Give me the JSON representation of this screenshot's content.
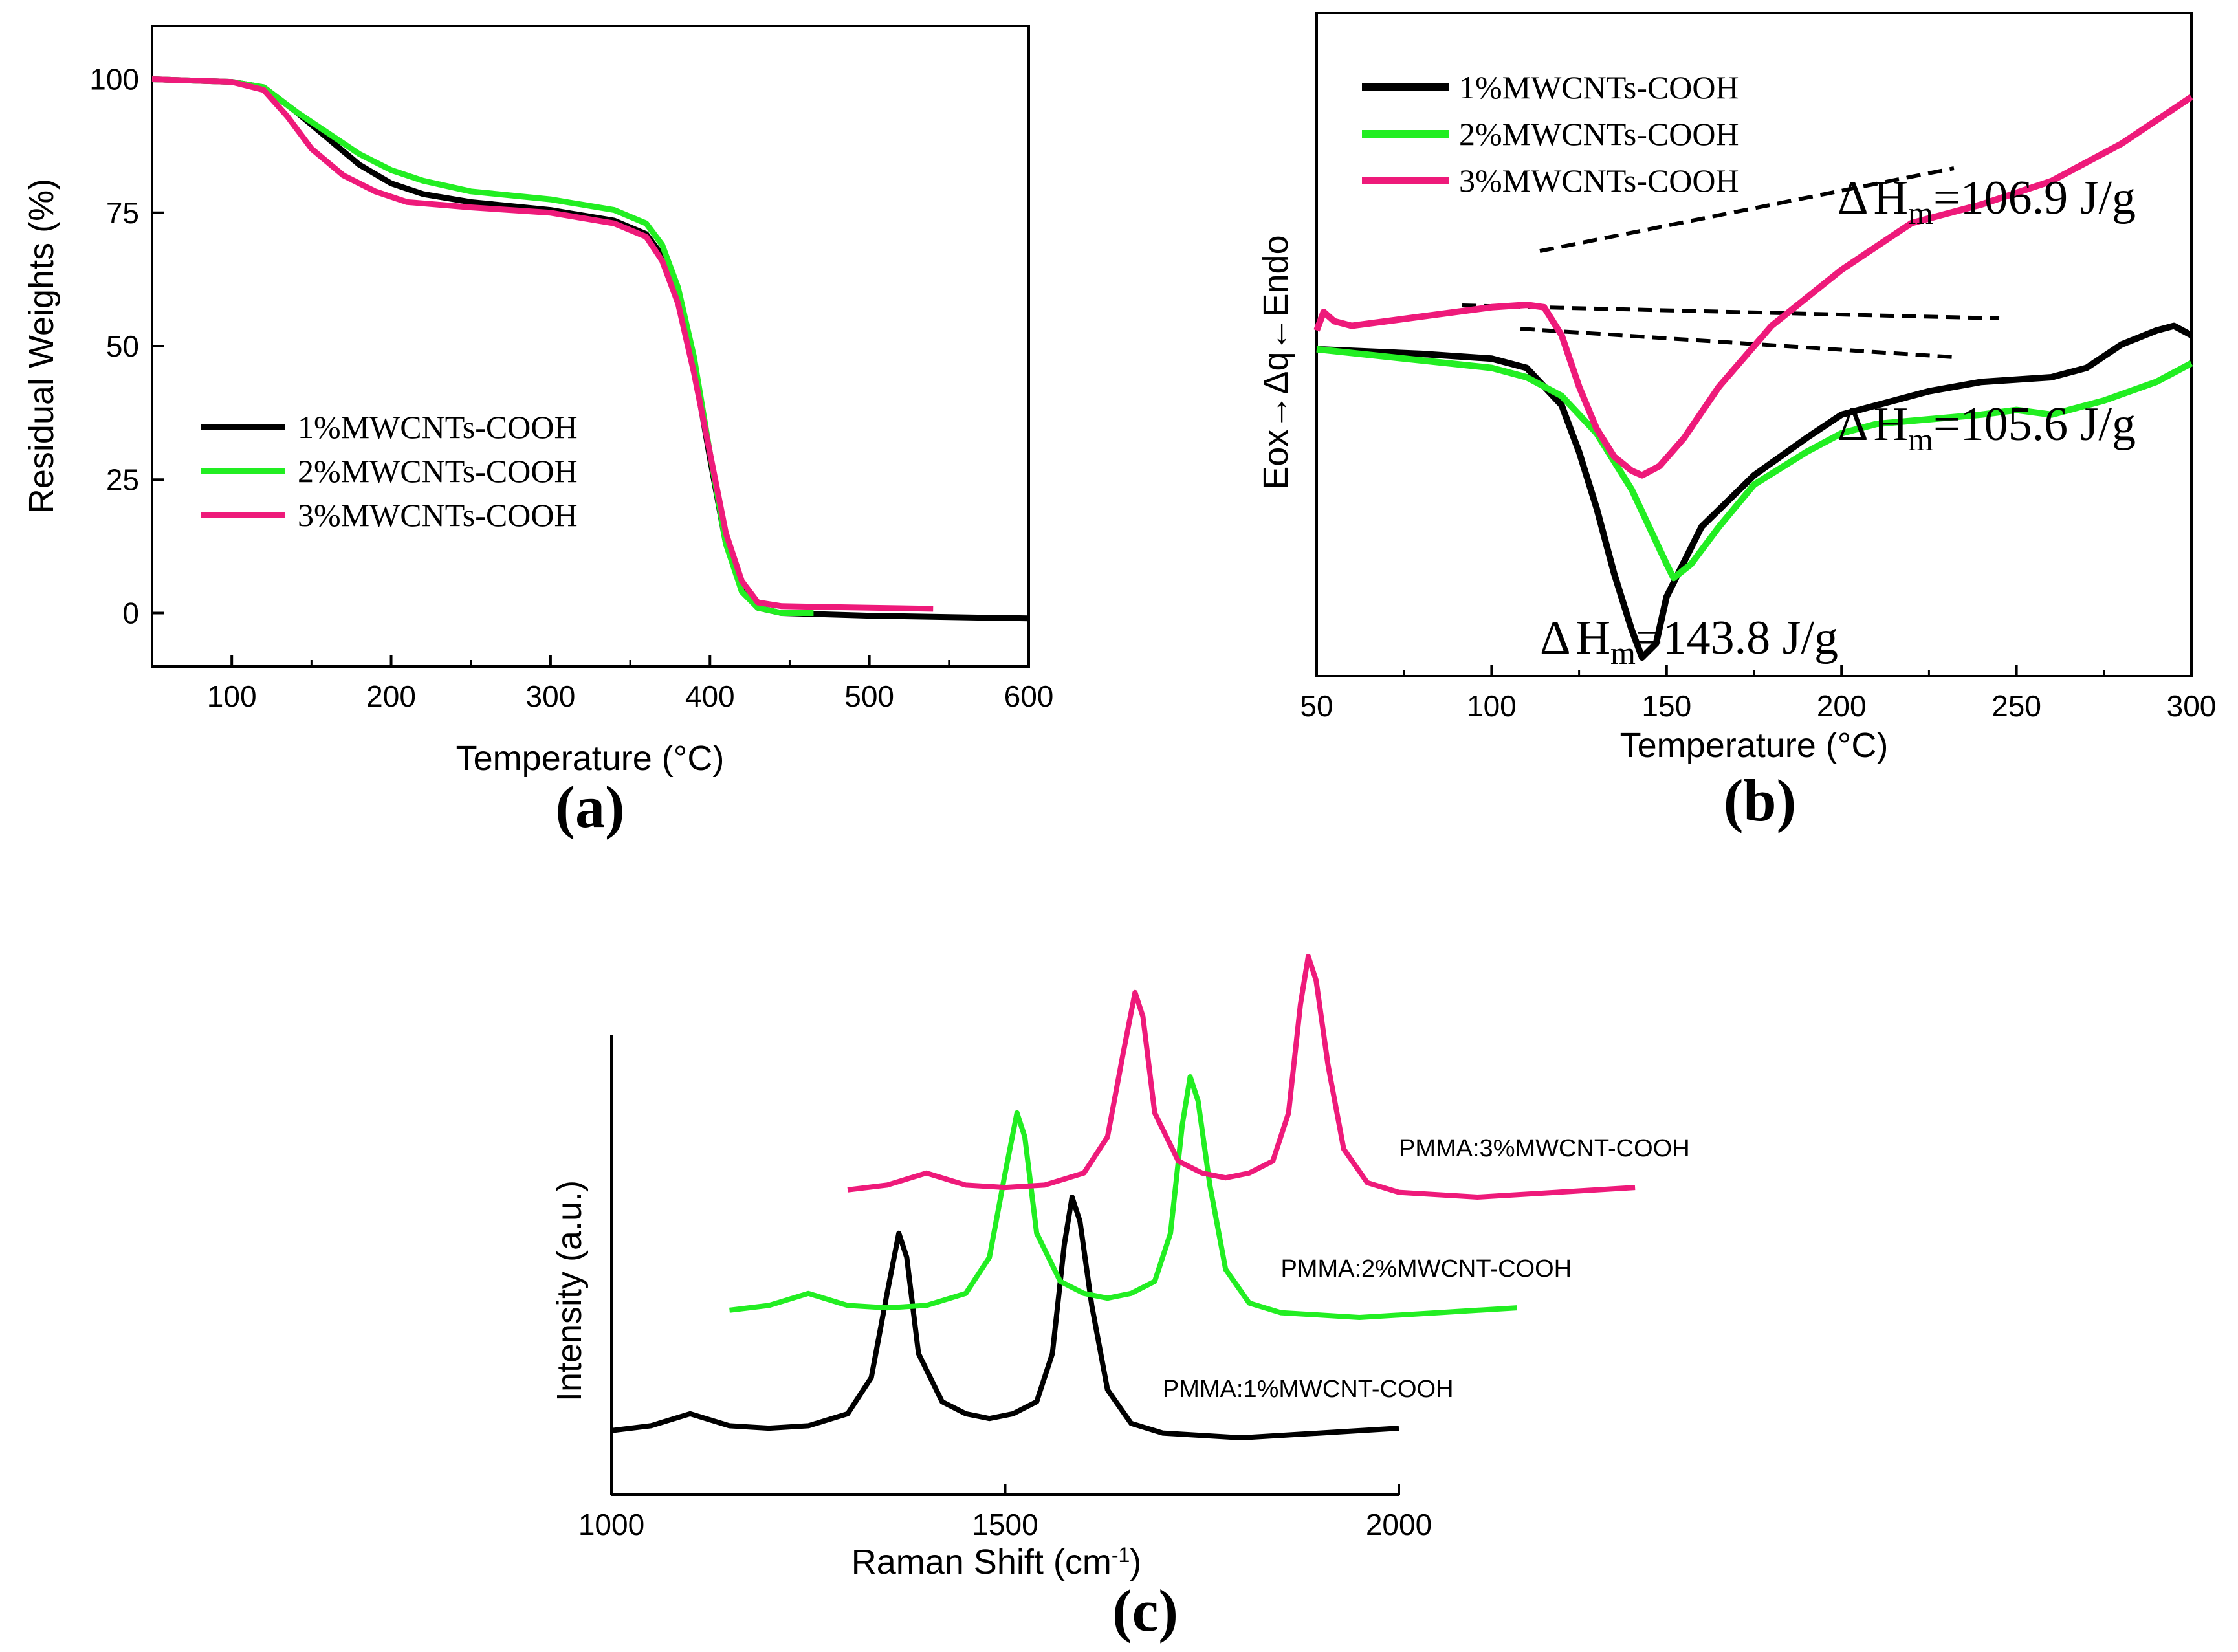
{
  "colors": {
    "black": "#000000",
    "green": "#22ee22",
    "pink": "#ee1a7a"
  },
  "chart_data": [
    {
      "type": "line",
      "panel_label": "(a)",
      "xlabel": "Temperature (°C)",
      "ylabel": "Residual Weights (%)",
      "xlim": [
        50,
        600
      ],
      "ylim": [
        -10,
        110
      ],
      "xticks": [
        100,
        200,
        300,
        400,
        500,
        600
      ],
      "yticks": [
        0,
        25,
        50,
        75,
        100
      ],
      "legend": [
        "1%MWCNTs-COOH",
        "2%MWCNTs-COOH",
        "3%MWCNTs-COOH"
      ],
      "series": [
        {
          "name": "1%MWCNTs-COOH",
          "color": "#000000",
          "points": [
            [
              50,
              100
            ],
            [
              100,
              99.5
            ],
            [
              120,
              98.5
            ],
            [
              140,
              94
            ],
            [
              160,
              89
            ],
            [
              180,
              84
            ],
            [
              200,
              80.5
            ],
            [
              220,
              78.5
            ],
            [
              250,
              77
            ],
            [
              300,
              75.5
            ],
            [
              340,
              73.5
            ],
            [
              360,
              71
            ],
            [
              370,
              67
            ],
            [
              380,
              59
            ],
            [
              390,
              46
            ],
            [
              400,
              29
            ],
            [
              410,
              13
            ],
            [
              420,
              4.5
            ],
            [
              430,
              1
            ],
            [
              445,
              0
            ],
            [
              500,
              -0.5
            ],
            [
              600,
              -1
            ]
          ]
        },
        {
          "name": "2%MWCNTs-COOH",
          "color": "#22ee22",
          "points": [
            [
              50,
              100
            ],
            [
              100,
              99.5
            ],
            [
              120,
              98.5
            ],
            [
              140,
              94
            ],
            [
              160,
              90
            ],
            [
              180,
              86
            ],
            [
              200,
              83
            ],
            [
              220,
              81
            ],
            [
              250,
              79
            ],
            [
              300,
              77.5
            ],
            [
              340,
              75.5
            ],
            [
              360,
              73
            ],
            [
              370,
              69
            ],
            [
              380,
              61
            ],
            [
              390,
              48
            ],
            [
              400,
              30
            ],
            [
              410,
              13
            ],
            [
              420,
              4
            ],
            [
              430,
              1
            ],
            [
              445,
              0
            ],
            [
              465,
              0
            ]
          ]
        },
        {
          "name": "3%MWCNTs-COOH",
          "color": "#ee1a7a",
          "points": [
            [
              50,
              100
            ],
            [
              100,
              99.5
            ],
            [
              120,
              98
            ],
            [
              135,
              93
            ],
            [
              150,
              87
            ],
            [
              170,
              82
            ],
            [
              190,
              79
            ],
            [
              210,
              77
            ],
            [
              250,
              76
            ],
            [
              300,
              75
            ],
            [
              340,
              73
            ],
            [
              360,
              70.5
            ],
            [
              370,
              66
            ],
            [
              380,
              58
            ],
            [
              390,
              45
            ],
            [
              400,
              30
            ],
            [
              410,
              15
            ],
            [
              420,
              6
            ],
            [
              430,
              2
            ],
            [
              445,
              1.3
            ],
            [
              500,
              1
            ],
            [
              540,
              0.8
            ]
          ]
        }
      ]
    },
    {
      "type": "line",
      "panel_label": "(b)",
      "xlabel": "Temperature (°C)",
      "ylabel": "Eox→Δq←Endo",
      "xlim": [
        50,
        300
      ],
      "ylim": [
        -11,
        3.2
      ],
      "xticks": [
        50,
        100,
        150,
        200,
        250,
        300
      ],
      "legend": [
        "1%MWCNTs-COOH",
        "2%MWCNTs-COOH",
        "3%MWCNTs-COOH"
      ],
      "annotations": [
        {
          "delta": "Δ",
          "h": "H",
          "sub": "m",
          "value": "=106.9 J/g"
        },
        {
          "delta": "Δ",
          "h": "H",
          "sub": "m",
          "value": "=105.6 J/g"
        },
        {
          "delta": "Δ",
          "h": "H",
          "sub": "m",
          "value": "=143.8 J/g"
        }
      ],
      "series": [
        {
          "name": "1%MWCNTs-COOH",
          "color": "#000000",
          "points": [
            [
              50,
              -4
            ],
            [
              80,
              -4.1
            ],
            [
              100,
              -4.2
            ],
            [
              110,
              -4.4
            ],
            [
              120,
              -5.2
            ],
            [
              125,
              -6.2
            ],
            [
              130,
              -7.4
            ],
            [
              135,
              -8.8
            ],
            [
              140,
              -10
            ],
            [
              143,
              -10.6
            ],
            [
              147,
              -10.3
            ],
            [
              150,
              -9.3
            ],
            [
              160,
              -7.8
            ],
            [
              175,
              -6.7
            ],
            [
              190,
              -5.9
            ],
            [
              200,
              -5.4
            ],
            [
              210,
              -5.2
            ],
            [
              225,
              -4.9
            ],
            [
              240,
              -4.7
            ],
            [
              260,
              -4.6
            ],
            [
              270,
              -4.4
            ],
            [
              280,
              -3.9
            ],
            [
              290,
              -3.6
            ],
            [
              295,
              -3.5
            ],
            [
              300,
              -3.7
            ]
          ]
        },
        {
          "name": "2%MWCNTs-COOH",
          "color": "#22ee22",
          "points": [
            [
              50,
              -4
            ],
            [
              100,
              -4.4
            ],
            [
              110,
              -4.6
            ],
            [
              120,
              -5
            ],
            [
              130,
              -5.8
            ],
            [
              140,
              -7
            ],
            [
              145,
              -7.8
            ],
            [
              150,
              -8.6
            ],
            [
              152,
              -8.9
            ],
            [
              157,
              -8.6
            ],
            [
              165,
              -7.8
            ],
            [
              175,
              -6.9
            ],
            [
              190,
              -6.2
            ],
            [
              200,
              -5.8
            ],
            [
              210,
              -5.6
            ],
            [
              225,
              -5.5
            ],
            [
              240,
              -5.4
            ],
            [
              250,
              -5.3
            ],
            [
              260,
              -5.4
            ],
            [
              275,
              -5.1
            ],
            [
              290,
              -4.7
            ],
            [
              300,
              -4.3
            ]
          ]
        },
        {
          "name": "3%MWCNTs-COOH",
          "color": "#ee1a7a",
          "points": [
            [
              50,
              -3.6
            ],
            [
              52,
              -3.2
            ],
            [
              55,
              -3.4
            ],
            [
              60,
              -3.5
            ],
            [
              80,
              -3.3
            ],
            [
              100,
              -3.1
            ],
            [
              110,
              -3.05
            ],
            [
              115,
              -3.1
            ],
            [
              120,
              -3.7
            ],
            [
              125,
              -4.8
            ],
            [
              130,
              -5.7
            ],
            [
              135,
              -6.3
            ],
            [
              140,
              -6.6
            ],
            [
              143,
              -6.7
            ],
            [
              148,
              -6.5
            ],
            [
              155,
              -5.9
            ],
            [
              165,
              -4.8
            ],
            [
              180,
              -3.5
            ],
            [
              200,
              -2.3
            ],
            [
              220,
              -1.3
            ],
            [
              240,
              -0.9
            ],
            [
              260,
              -0.4
            ],
            [
              280,
              0.4
            ],
            [
              300,
              1.4
            ]
          ]
        }
      ]
    },
    {
      "type": "line",
      "panel_label": "(c)",
      "xlabel": "Raman Shift (cm",
      "xlabel_sup": "-1",
      "xlabel_end": ")",
      "ylabel": "Intensity (a.u.)",
      "xlim": [
        1000,
        2000
      ],
      "xticks": [
        1000,
        1500,
        2000
      ],
      "series": [
        {
          "name": "PMMA:1%MWCNT-COOH",
          "color": "#000000",
          "x_offset": 0,
          "y_offset": 0,
          "points": [
            [
              1000,
              0.03
            ],
            [
              1050,
              0.05
            ],
            [
              1100,
              0.1
            ],
            [
              1150,
              0.05
            ],
            [
              1200,
              0.04
            ],
            [
              1250,
              0.05
            ],
            [
              1300,
              0.1
            ],
            [
              1330,
              0.25
            ],
            [
              1350,
              0.6
            ],
            [
              1365,
              0.85
            ],
            [
              1375,
              0.75
            ],
            [
              1390,
              0.35
            ],
            [
              1420,
              0.15
            ],
            [
              1450,
              0.1
            ],
            [
              1480,
              0.08
            ],
            [
              1510,
              0.1
            ],
            [
              1540,
              0.15
            ],
            [
              1560,
              0.35
            ],
            [
              1575,
              0.8
            ],
            [
              1585,
              1.0
            ],
            [
              1595,
              0.9
            ],
            [
              1610,
              0.55
            ],
            [
              1630,
              0.2
            ],
            [
              1660,
              0.06
            ],
            [
              1700,
              0.02
            ],
            [
              1800,
              0.0
            ],
            [
              1900,
              0.02
            ],
            [
              2000,
              0.04
            ]
          ]
        },
        {
          "name": "PMMA:2%MWCNT-COOH",
          "color": "#22ee22",
          "x_offset": 150,
          "y_offset": 0.5,
          "points": [
            [
              1000,
              0.03
            ],
            [
              1050,
              0.05
            ],
            [
              1100,
              0.1
            ],
            [
              1150,
              0.05
            ],
            [
              1200,
              0.04
            ],
            [
              1250,
              0.05
            ],
            [
              1300,
              0.1
            ],
            [
              1330,
              0.25
            ],
            [
              1350,
              0.6
            ],
            [
              1365,
              0.85
            ],
            [
              1375,
              0.75
            ],
            [
              1390,
              0.35
            ],
            [
              1420,
              0.15
            ],
            [
              1450,
              0.1
            ],
            [
              1480,
              0.08
            ],
            [
              1510,
              0.1
            ],
            [
              1540,
              0.15
            ],
            [
              1560,
              0.35
            ],
            [
              1575,
              0.8
            ],
            [
              1585,
              1.0
            ],
            [
              1595,
              0.9
            ],
            [
              1610,
              0.55
            ],
            [
              1630,
              0.2
            ],
            [
              1660,
              0.06
            ],
            [
              1700,
              0.02
            ],
            [
              1800,
              0.0
            ],
            [
              1900,
              0.02
            ],
            [
              2000,
              0.04
            ]
          ]
        },
        {
          "name": "PMMA:3%MWCNT-COOH",
          "color": "#ee1a7a",
          "x_offset": 300,
          "y_offset": 1.0,
          "points": [
            [
              1000,
              0.03
            ],
            [
              1050,
              0.05
            ],
            [
              1100,
              0.1
            ],
            [
              1150,
              0.05
            ],
            [
              1200,
              0.04
            ],
            [
              1250,
              0.05
            ],
            [
              1300,
              0.1
            ],
            [
              1330,
              0.25
            ],
            [
              1350,
              0.6
            ],
            [
              1365,
              0.85
            ],
            [
              1375,
              0.75
            ],
            [
              1390,
              0.35
            ],
            [
              1420,
              0.15
            ],
            [
              1450,
              0.1
            ],
            [
              1480,
              0.08
            ],
            [
              1510,
              0.1
            ],
            [
              1540,
              0.15
            ],
            [
              1560,
              0.35
            ],
            [
              1575,
              0.8
            ],
            [
              1585,
              1.0
            ],
            [
              1595,
              0.9
            ],
            [
              1610,
              0.55
            ],
            [
              1630,
              0.2
            ],
            [
              1660,
              0.06
            ],
            [
              1700,
              0.02
            ],
            [
              1800,
              0.0
            ],
            [
              1900,
              0.02
            ],
            [
              2000,
              0.04
            ]
          ]
        }
      ]
    }
  ]
}
